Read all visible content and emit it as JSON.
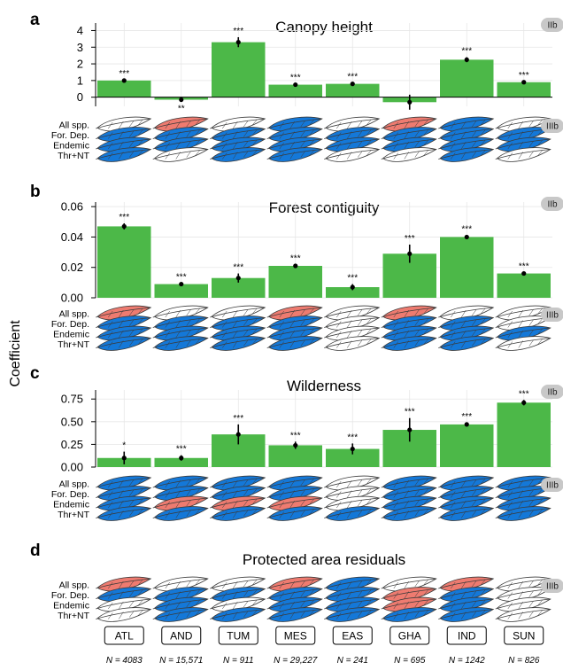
{
  "ylabel": "Coefficient",
  "row_labels": [
    "All spp.",
    "For. Dep.",
    "Endemic",
    "Thr+NT"
  ],
  "sites": [
    "ATL",
    "AND",
    "TUM",
    "MES",
    "EAS",
    "GHA",
    "IND",
    "SUN"
  ],
  "n_labels": [
    "N = 4083",
    "N = 15,571",
    "N = 911",
    "N = 29,227",
    "N = 241",
    "N = 695",
    "N = 1242",
    "N = 826"
  ],
  "colors": {
    "bar": "#4cb848",
    "pos": "#1478d8",
    "neg": "#ee7b70",
    "ns": "#ffffff",
    "badge": "#c8c8c8"
  },
  "chart_data": [
    {
      "type": "bar",
      "letter": "a",
      "title": "Canopy height",
      "badge": "IIb",
      "icon_badge": "IIIb",
      "xlabel": "",
      "ylabel": "Coefficient",
      "categories": [
        "ATL",
        "AND",
        "TUM",
        "MES",
        "EAS",
        "GHA",
        "IND",
        "SUN"
      ],
      "values": [
        1.0,
        -0.15,
        3.3,
        0.75,
        0.8,
        -0.3,
        2.25,
        0.9
      ],
      "ci_low": [
        0.95,
        -0.2,
        3.0,
        0.7,
        0.75,
        -0.75,
        2.1,
        0.85
      ],
      "ci_high": [
        1.05,
        -0.1,
        3.6,
        0.8,
        0.85,
        0.15,
        2.4,
        0.95
      ],
      "significance": [
        "***",
        "**",
        "***",
        "***",
        "***",
        "",
        "***",
        "***"
      ],
      "ylim": [
        -0.55,
        4.45
      ],
      "ticks": [
        0,
        1,
        2,
        3,
        4
      ],
      "tick_labels": [
        "0",
        "1",
        "2",
        "3",
        "4"
      ],
      "icons": [
        [
          "ns",
          "pos",
          "pos",
          "pos"
        ],
        [
          "neg",
          "pos",
          "pos",
          "ns"
        ],
        [
          "ns",
          "pos",
          "pos",
          "pos"
        ],
        [
          "pos",
          "pos",
          "pos",
          "pos"
        ],
        [
          "ns",
          "pos",
          "pos",
          "ns"
        ],
        [
          "neg",
          "pos",
          "pos",
          "ns"
        ],
        [
          "pos",
          "pos",
          "pos",
          "pos"
        ],
        [
          "ns",
          "pos",
          "pos",
          "ns"
        ]
      ]
    },
    {
      "type": "bar",
      "letter": "b",
      "title": "Forest contiguity",
      "badge": "IIb",
      "icon_badge": "IIIb",
      "xlabel": "",
      "ylabel": "Coefficient",
      "categories": [
        "ATL",
        "AND",
        "TUM",
        "MES",
        "EAS",
        "GHA",
        "IND",
        "SUN"
      ],
      "values": [
        0.047,
        0.009,
        0.013,
        0.021,
        0.007,
        0.029,
        0.04,
        0.016
      ],
      "ci_low": [
        0.045,
        0.0085,
        0.01,
        0.02,
        0.005,
        0.023,
        0.039,
        0.0155
      ],
      "ci_high": [
        0.049,
        0.0095,
        0.016,
        0.022,
        0.009,
        0.035,
        0.041,
        0.0165
      ],
      "significance": [
        "***",
        "***",
        "***",
        "***",
        "***",
        "***",
        "***",
        "***"
      ],
      "ylim": [
        0,
        0.063
      ],
      "ticks": [
        0,
        0.02,
        0.04,
        0.06
      ],
      "tick_labels": [
        "0.00",
        "0.02",
        "0.04",
        "0.06"
      ],
      "icons": [
        [
          "neg",
          "pos",
          "pos",
          "pos"
        ],
        [
          "ns",
          "pos",
          "pos",
          "pos"
        ],
        [
          "ns",
          "pos",
          "pos",
          "pos"
        ],
        [
          "neg",
          "pos",
          "pos",
          "pos"
        ],
        [
          "ns",
          "ns",
          "ns",
          "ns"
        ],
        [
          "neg",
          "pos",
          "pos",
          "pos"
        ],
        [
          "ns",
          "pos",
          "pos",
          "pos"
        ],
        [
          "ns",
          "ns",
          "pos",
          "ns"
        ]
      ]
    },
    {
      "type": "bar",
      "letter": "c",
      "title": "Wilderness",
      "badge": "IIb",
      "icon_badge": "IIIb",
      "xlabel": "",
      "ylabel": "Coefficient",
      "categories": [
        "ATL",
        "AND",
        "TUM",
        "MES",
        "EAS",
        "GHA",
        "IND",
        "SUN"
      ],
      "values": [
        0.1,
        0.1,
        0.36,
        0.24,
        0.2,
        0.41,
        0.47,
        0.71
      ],
      "ci_low": [
        0.03,
        0.07,
        0.25,
        0.2,
        0.14,
        0.28,
        0.45,
        0.68
      ],
      "ci_high": [
        0.17,
        0.13,
        0.47,
        0.28,
        0.26,
        0.54,
        0.49,
        0.74
      ],
      "significance": [
        "*",
        "***",
        "***",
        "***",
        "***",
        "***",
        "***",
        "***"
      ],
      "ylim": [
        0,
        0.85
      ],
      "ticks": [
        0,
        0.25,
        0.5,
        0.75
      ],
      "tick_labels": [
        "0.00",
        "0.25",
        "0.50",
        "0.75"
      ],
      "icons": [
        [
          "pos",
          "pos",
          "pos",
          "pos"
        ],
        [
          "pos",
          "pos",
          "neg",
          "pos"
        ],
        [
          "pos",
          "pos",
          "neg",
          "pos"
        ],
        [
          "pos",
          "pos",
          "neg",
          "pos"
        ],
        [
          "ns",
          "ns",
          "ns",
          "pos"
        ],
        [
          "pos",
          "pos",
          "pos",
          "pos"
        ],
        [
          "pos",
          "pos",
          "pos",
          "pos"
        ],
        [
          "pos",
          "pos",
          "pos",
          "pos"
        ]
      ]
    },
    {
      "type": "table",
      "letter": "d",
      "title": "Protected area residuals",
      "icon_badge": "IIIb",
      "categories": [
        "ATL",
        "AND",
        "TUM",
        "MES",
        "EAS",
        "GHA",
        "IND",
        "SUN"
      ],
      "icons": [
        [
          "neg",
          "pos",
          "ns",
          "ns"
        ],
        [
          "ns",
          "pos",
          "pos",
          "pos"
        ],
        [
          "ns",
          "pos",
          "ns",
          "pos"
        ],
        [
          "neg",
          "pos",
          "pos",
          "pos"
        ],
        [
          "pos",
          "pos",
          "pos",
          "pos"
        ],
        [
          "ns",
          "neg",
          "neg",
          "pos"
        ],
        [
          "neg",
          "pos",
          "pos",
          "pos"
        ],
        [
          "ns",
          "ns",
          "ns",
          "ns"
        ]
      ]
    }
  ]
}
